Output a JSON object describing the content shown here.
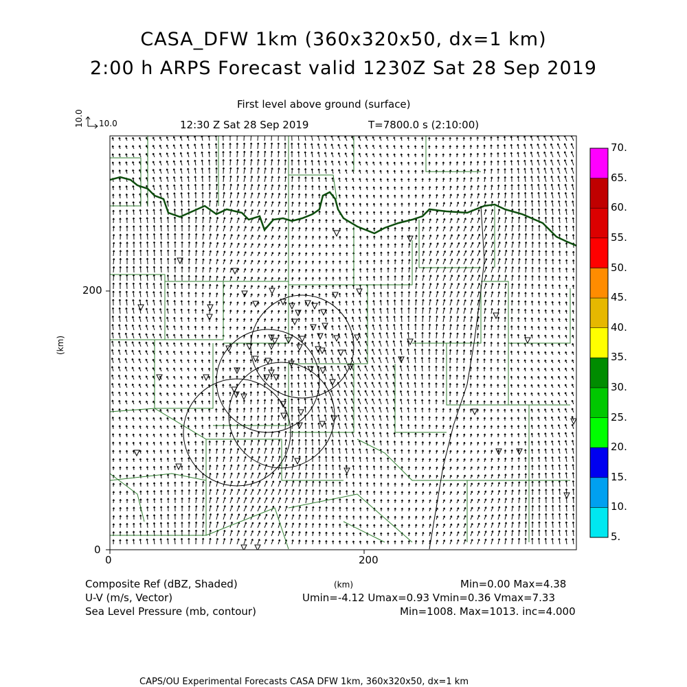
{
  "header": {
    "title_line1": "CASA_DFW 1km (360x320x50, dx=1 km)",
    "title_line2": "2:00 h ARPS Forecast valid 1230Z Sat 28 Sep 2019",
    "level": "First level above ground (surface)",
    "valid_time": "12:30 Z Sat 28 Sep 2019",
    "elapsed": "T=7800.0 s (2:10:00)"
  },
  "vector_scale": {
    "vertical_label": "10.0",
    "horizontal_label": "10.0"
  },
  "axes": {
    "x_ticks": [
      "0",
      "200"
    ],
    "y_ticks": [
      "0",
      "200"
    ],
    "x_unit": "(km)",
    "y_unit": "(km)"
  },
  "colorbar": {
    "labels": [
      "5.",
      "10.",
      "15.",
      "20.",
      "25.",
      "30.",
      "35.",
      "40.",
      "45.",
      "50.",
      "55.",
      "60.",
      "65.",
      "70."
    ],
    "colors": [
      "#00e8f0",
      "#00a0f0",
      "#0000f0",
      "#00ff00",
      "#00c800",
      "#008c00",
      "#ffff00",
      "#e6b800",
      "#ff8c00",
      "#ff0000",
      "#dc0000",
      "#c00000",
      "#ff00ff",
      "#ff00ff"
    ]
  },
  "footer": {
    "row1_left": "Composite Ref (dBZ, Shaded)",
    "row1_right": "Min=0.00 Max=4.38",
    "row2_left": "U-V (m/s, Vector)",
    "row2_right": "Umin=-4.12 Umax=0.93 Vmin=0.36 Vmax=7.33",
    "row3_left": "Sea Level Pressure (mb, contour)",
    "row3_right": "Min=1008. Max=1013. inc=4.000",
    "credit": "CAPS/OU Experimental Forecasts   CASA DFW 1km, 360x320x50, dx=1 km"
  },
  "map_colors": {
    "county_lines": "#2e7d2e",
    "river": "#0d4d0d",
    "vectors": "#000000"
  }
}
